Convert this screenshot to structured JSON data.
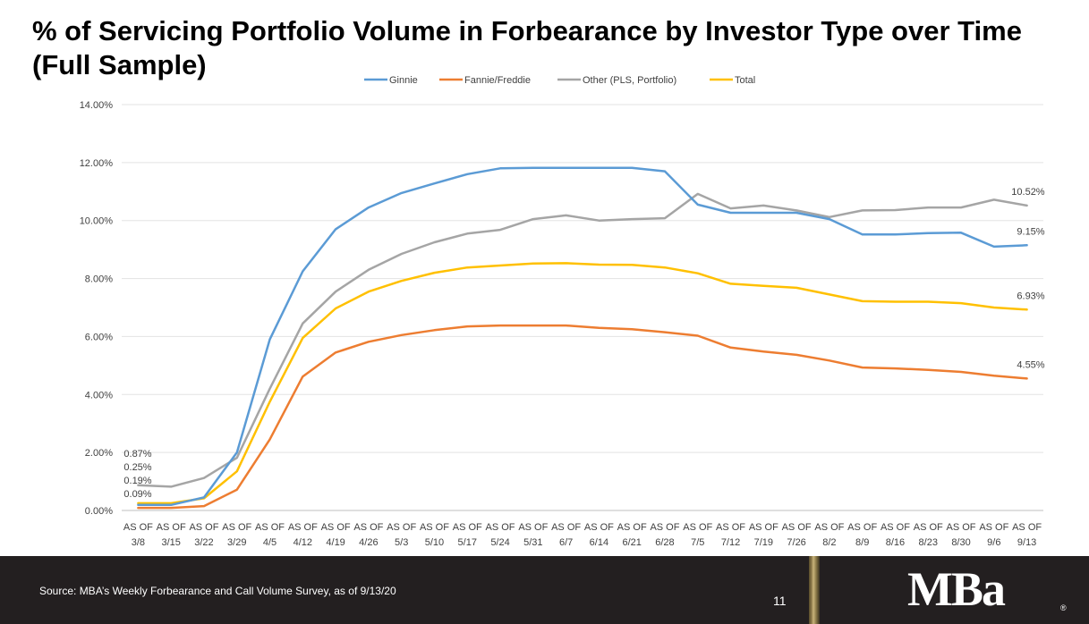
{
  "title": "% of Servicing Portfolio Volume in Forbearance by Investor Type over Time (Full Sample)",
  "chart_data": {
    "type": "line",
    "title": "",
    "xlabel": "",
    "ylabel": "",
    "ylim": [
      0,
      14
    ],
    "y_ticks": [
      "0.00%",
      "2.00%",
      "4.00%",
      "6.00%",
      "8.00%",
      "10.00%",
      "12.00%",
      "14.00%"
    ],
    "grid": true,
    "legend_position": "top",
    "categories": [
      "AS OF 3/8",
      "AS OF 3/15",
      "AS OF 3/22",
      "AS OF 3/29",
      "AS OF 4/5",
      "AS OF 4/12",
      "AS OF 4/19",
      "AS OF 4/26",
      "AS OF 5/3",
      "AS OF 5/10",
      "AS OF 5/17",
      "AS OF 5/24",
      "AS OF 5/31",
      "AS OF 6/7",
      "AS OF 6/14",
      "AS OF 6/21",
      "AS OF 6/28",
      "AS OF 7/5",
      "AS OF 7/12",
      "AS OF 7/19",
      "AS OF 7/26",
      "AS OF 8/2",
      "AS OF 8/9",
      "AS OF 8/16",
      "AS OF 8/23",
      "AS OF 8/30",
      "AS OF 9/6",
      "AS OF 9/13"
    ],
    "series": [
      {
        "name": "Ginnie",
        "color": "#5b9bd5",
        "values": [
          0.19,
          0.19,
          0.45,
          2.0,
          5.9,
          8.25,
          9.7,
          10.45,
          10.95,
          11.28,
          11.6,
          11.8,
          11.82,
          11.82,
          11.82,
          11.82,
          11.7,
          10.55,
          10.27,
          10.27,
          10.27,
          10.05,
          9.52,
          9.52,
          9.57,
          9.58,
          9.1,
          9.15
        ]
      },
      {
        "name": "Fannie/Freddie",
        "color": "#ed7d31",
        "values": [
          0.09,
          0.09,
          0.15,
          0.72,
          2.45,
          4.62,
          5.45,
          5.82,
          6.05,
          6.22,
          6.35,
          6.38,
          6.38,
          6.38,
          6.3,
          6.25,
          6.15,
          6.03,
          5.62,
          5.48,
          5.37,
          5.17,
          4.93,
          4.9,
          4.85,
          4.78,
          4.65,
          4.55
        ]
      },
      {
        "name": "Other (PLS, Portfolio)",
        "color": "#a5a5a5",
        "values": [
          0.87,
          0.82,
          1.12,
          1.82,
          4.2,
          6.45,
          7.55,
          8.3,
          8.85,
          9.25,
          9.55,
          9.68,
          10.05,
          10.18,
          10.0,
          10.05,
          10.08,
          10.92,
          10.42,
          10.52,
          10.35,
          10.12,
          10.35,
          10.36,
          10.45,
          10.45,
          10.72,
          10.52
        ]
      },
      {
        "name": "Total",
        "color": "#ffc000",
        "values": [
          0.25,
          0.25,
          0.42,
          1.35,
          3.75,
          5.95,
          6.97,
          7.55,
          7.92,
          8.2,
          8.38,
          8.45,
          8.52,
          8.53,
          8.48,
          8.47,
          8.38,
          8.18,
          7.82,
          7.75,
          7.68,
          7.45,
          7.22,
          7.2,
          7.2,
          7.15,
          7.0,
          6.93
        ]
      }
    ],
    "data_labels": [
      {
        "text": "0.87%",
        "series": "Other (PLS, Portfolio)",
        "index": 0
      },
      {
        "text": "0.25%",
        "series": "Total",
        "index": 0
      },
      {
        "text": "0.19%",
        "series": "Ginnie",
        "index": 0
      },
      {
        "text": "0.09%",
        "series": "Fannie/Freddie",
        "index": 0
      },
      {
        "text": "10.52%",
        "series": "Other (PLS, Portfolio)",
        "index": 27
      },
      {
        "text": "9.15%",
        "series": "Ginnie",
        "index": 27
      },
      {
        "text": "6.93%",
        "series": "Total",
        "index": 27
      },
      {
        "text": "4.55%",
        "series": "Fannie/Freddie",
        "index": 27
      }
    ]
  },
  "footer": {
    "source": "Source: MBA’s Weekly Forbearance and Call Volume Survey, as of 9/13/20",
    "page_number": "11",
    "logo_text": "MBa",
    "logo_mark": "®",
    "background": "#231f20"
  }
}
